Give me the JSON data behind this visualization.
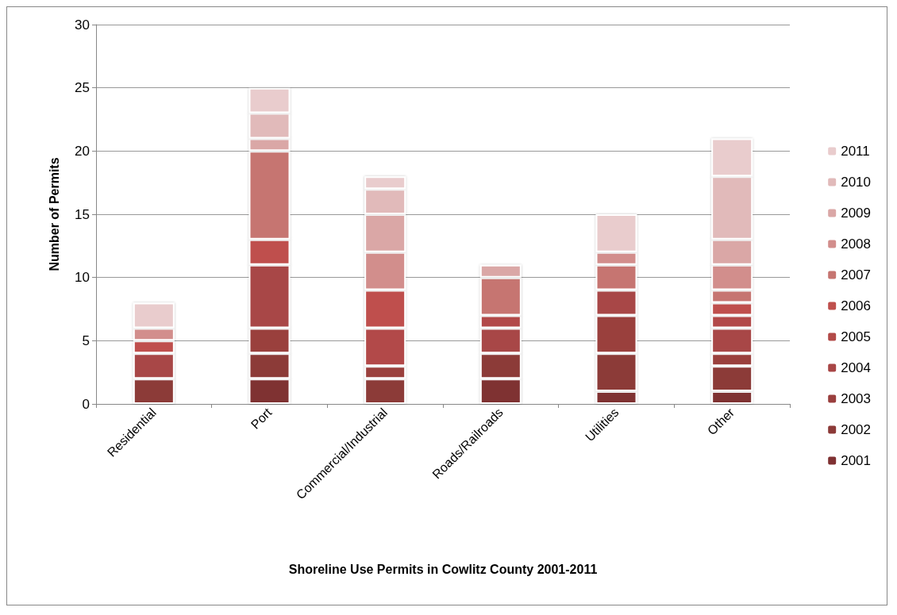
{
  "chart_data": {
    "type": "bar",
    "stacked": true,
    "xlabel": "Shoreline Use Permits in Cowlitz County 2001-2011",
    "ylabel": "Number of Permits",
    "categories": [
      "Residential",
      "Port",
      "Commercial/Industrial",
      "Roads/Railroads",
      "Utilities",
      "Other"
    ],
    "series": [
      {
        "name": "2001",
        "color": "#7f3132",
        "values": [
          0,
          2,
          0,
          2,
          1,
          1
        ]
      },
      {
        "name": "2002",
        "color": "#8c3a38",
        "values": [
          2,
          2,
          2,
          2,
          3,
          2
        ]
      },
      {
        "name": "2003",
        "color": "#9a3f3e",
        "values": [
          0,
          2,
          1,
          0,
          3,
          1
        ]
      },
      {
        "name": "2004",
        "color": "#a84646",
        "values": [
          2,
          5,
          0,
          2,
          2,
          2
        ]
      },
      {
        "name": "2005",
        "color": "#b24a48",
        "values": [
          0,
          0,
          3,
          1,
          0,
          1
        ]
      },
      {
        "name": "2006",
        "color": "#bf504d",
        "values": [
          1,
          2,
          3,
          0,
          0,
          1
        ]
      },
      {
        "name": "2007",
        "color": "#c67571",
        "values": [
          0,
          7,
          0,
          3,
          2,
          1
        ]
      },
      {
        "name": "2008",
        "color": "#d28e8c",
        "values": [
          1,
          0,
          3,
          0,
          1,
          2
        ]
      },
      {
        "name": "2009",
        "color": "#daa7a6",
        "values": [
          0,
          1,
          3,
          1,
          0,
          2
        ]
      },
      {
        "name": "2010",
        "color": "#e1baba",
        "values": [
          0,
          2,
          2,
          0,
          0,
          5
        ]
      },
      {
        "name": "2011",
        "color": "#e9cccd",
        "values": [
          2,
          2,
          1,
          0,
          3,
          3
        ]
      }
    ],
    "ylim": [
      0,
      30
    ],
    "yticks": [
      0,
      5,
      10,
      15,
      20,
      25,
      30
    ],
    "grid": "y",
    "legend": "right"
  }
}
